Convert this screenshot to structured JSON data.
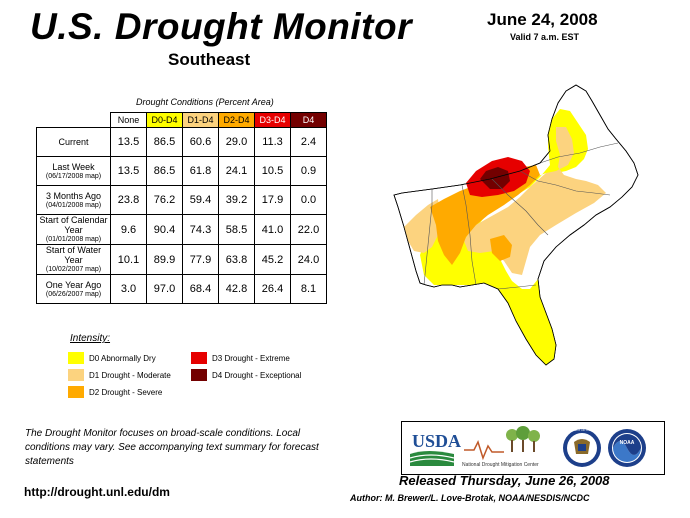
{
  "header": {
    "title": "U.S. Drought Monitor",
    "subtitle": "Southeast",
    "date": "June 24, 2008",
    "valid": "Valid 7 a.m. EST"
  },
  "table": {
    "caption": "Drought Conditions (Percent Area)",
    "columns": [
      "None",
      "D0-D4",
      "D1-D4",
      "D2-D4",
      "D3-D4",
      "D4"
    ],
    "column_colors": [
      "#ffffff",
      "#ffff00",
      "#fcd37f",
      "#ffaa00",
      "#e60000",
      "#730000"
    ],
    "column_text_colors": [
      "#000000",
      "#000000",
      "#000000",
      "#000000",
      "#ffffff",
      "#ffffff"
    ],
    "rows": [
      {
        "label": "Current",
        "sub": "",
        "values": [
          "13.5",
          "86.5",
          "60.6",
          "29.0",
          "11.3",
          "2.4"
        ]
      },
      {
        "label": "Last Week",
        "sub": "(06/17/2008 map)",
        "values": [
          "13.5",
          "86.5",
          "61.8",
          "24.1",
          "10.5",
          "0.9"
        ]
      },
      {
        "label": "3 Months Ago",
        "sub": "(04/01/2008 map)",
        "values": [
          "23.8",
          "76.2",
          "59.4",
          "39.2",
          "17.9",
          "0.0"
        ]
      },
      {
        "label": "Start of Calendar Year",
        "sub": "(01/01/2008 map)",
        "values": [
          "9.6",
          "90.4",
          "74.3",
          "58.5",
          "41.0",
          "22.0"
        ]
      },
      {
        "label": "Start of Water Year",
        "sub": "(10/02/2007 map)",
        "values": [
          "10.1",
          "89.9",
          "77.9",
          "63.8",
          "45.2",
          "24.0"
        ]
      },
      {
        "label": "One Year Ago",
        "sub": "(06/26/2007 map)",
        "values": [
          "3.0",
          "97.0",
          "68.4",
          "42.8",
          "26.4",
          "8.1"
        ]
      }
    ]
  },
  "legend": {
    "title": "Intensity:",
    "items": [
      {
        "label": "D0 Abnormally Dry",
        "color": "#ffff00"
      },
      {
        "label": "D1 Drought - Moderate",
        "color": "#fcd37f"
      },
      {
        "label": "D2 Drought - Severe",
        "color": "#ffaa00"
      },
      {
        "label": "D3 Drought - Extreme",
        "color": "#e60000"
      },
      {
        "label": "D4 Drought - Exceptional",
        "color": "#730000"
      }
    ]
  },
  "footer": {
    "note": "The Drought Monitor focuses on broad-scale conditions. Local conditions may vary. See accompanying text summary for forecast statements",
    "url": "http://drought.unl.edu/dm",
    "released": "Released Thursday, June 26, 2008",
    "author": "Author: M. Brewer/L. Love-Brotak, NOAA/NESDIS/NCDC"
  },
  "logos": {
    "usda": "USDA",
    "ndmc": "National Drought Mitigation Center",
    "doc": "DEPARTMENT OF COMMERCE",
    "noaa": "NOAA"
  }
}
